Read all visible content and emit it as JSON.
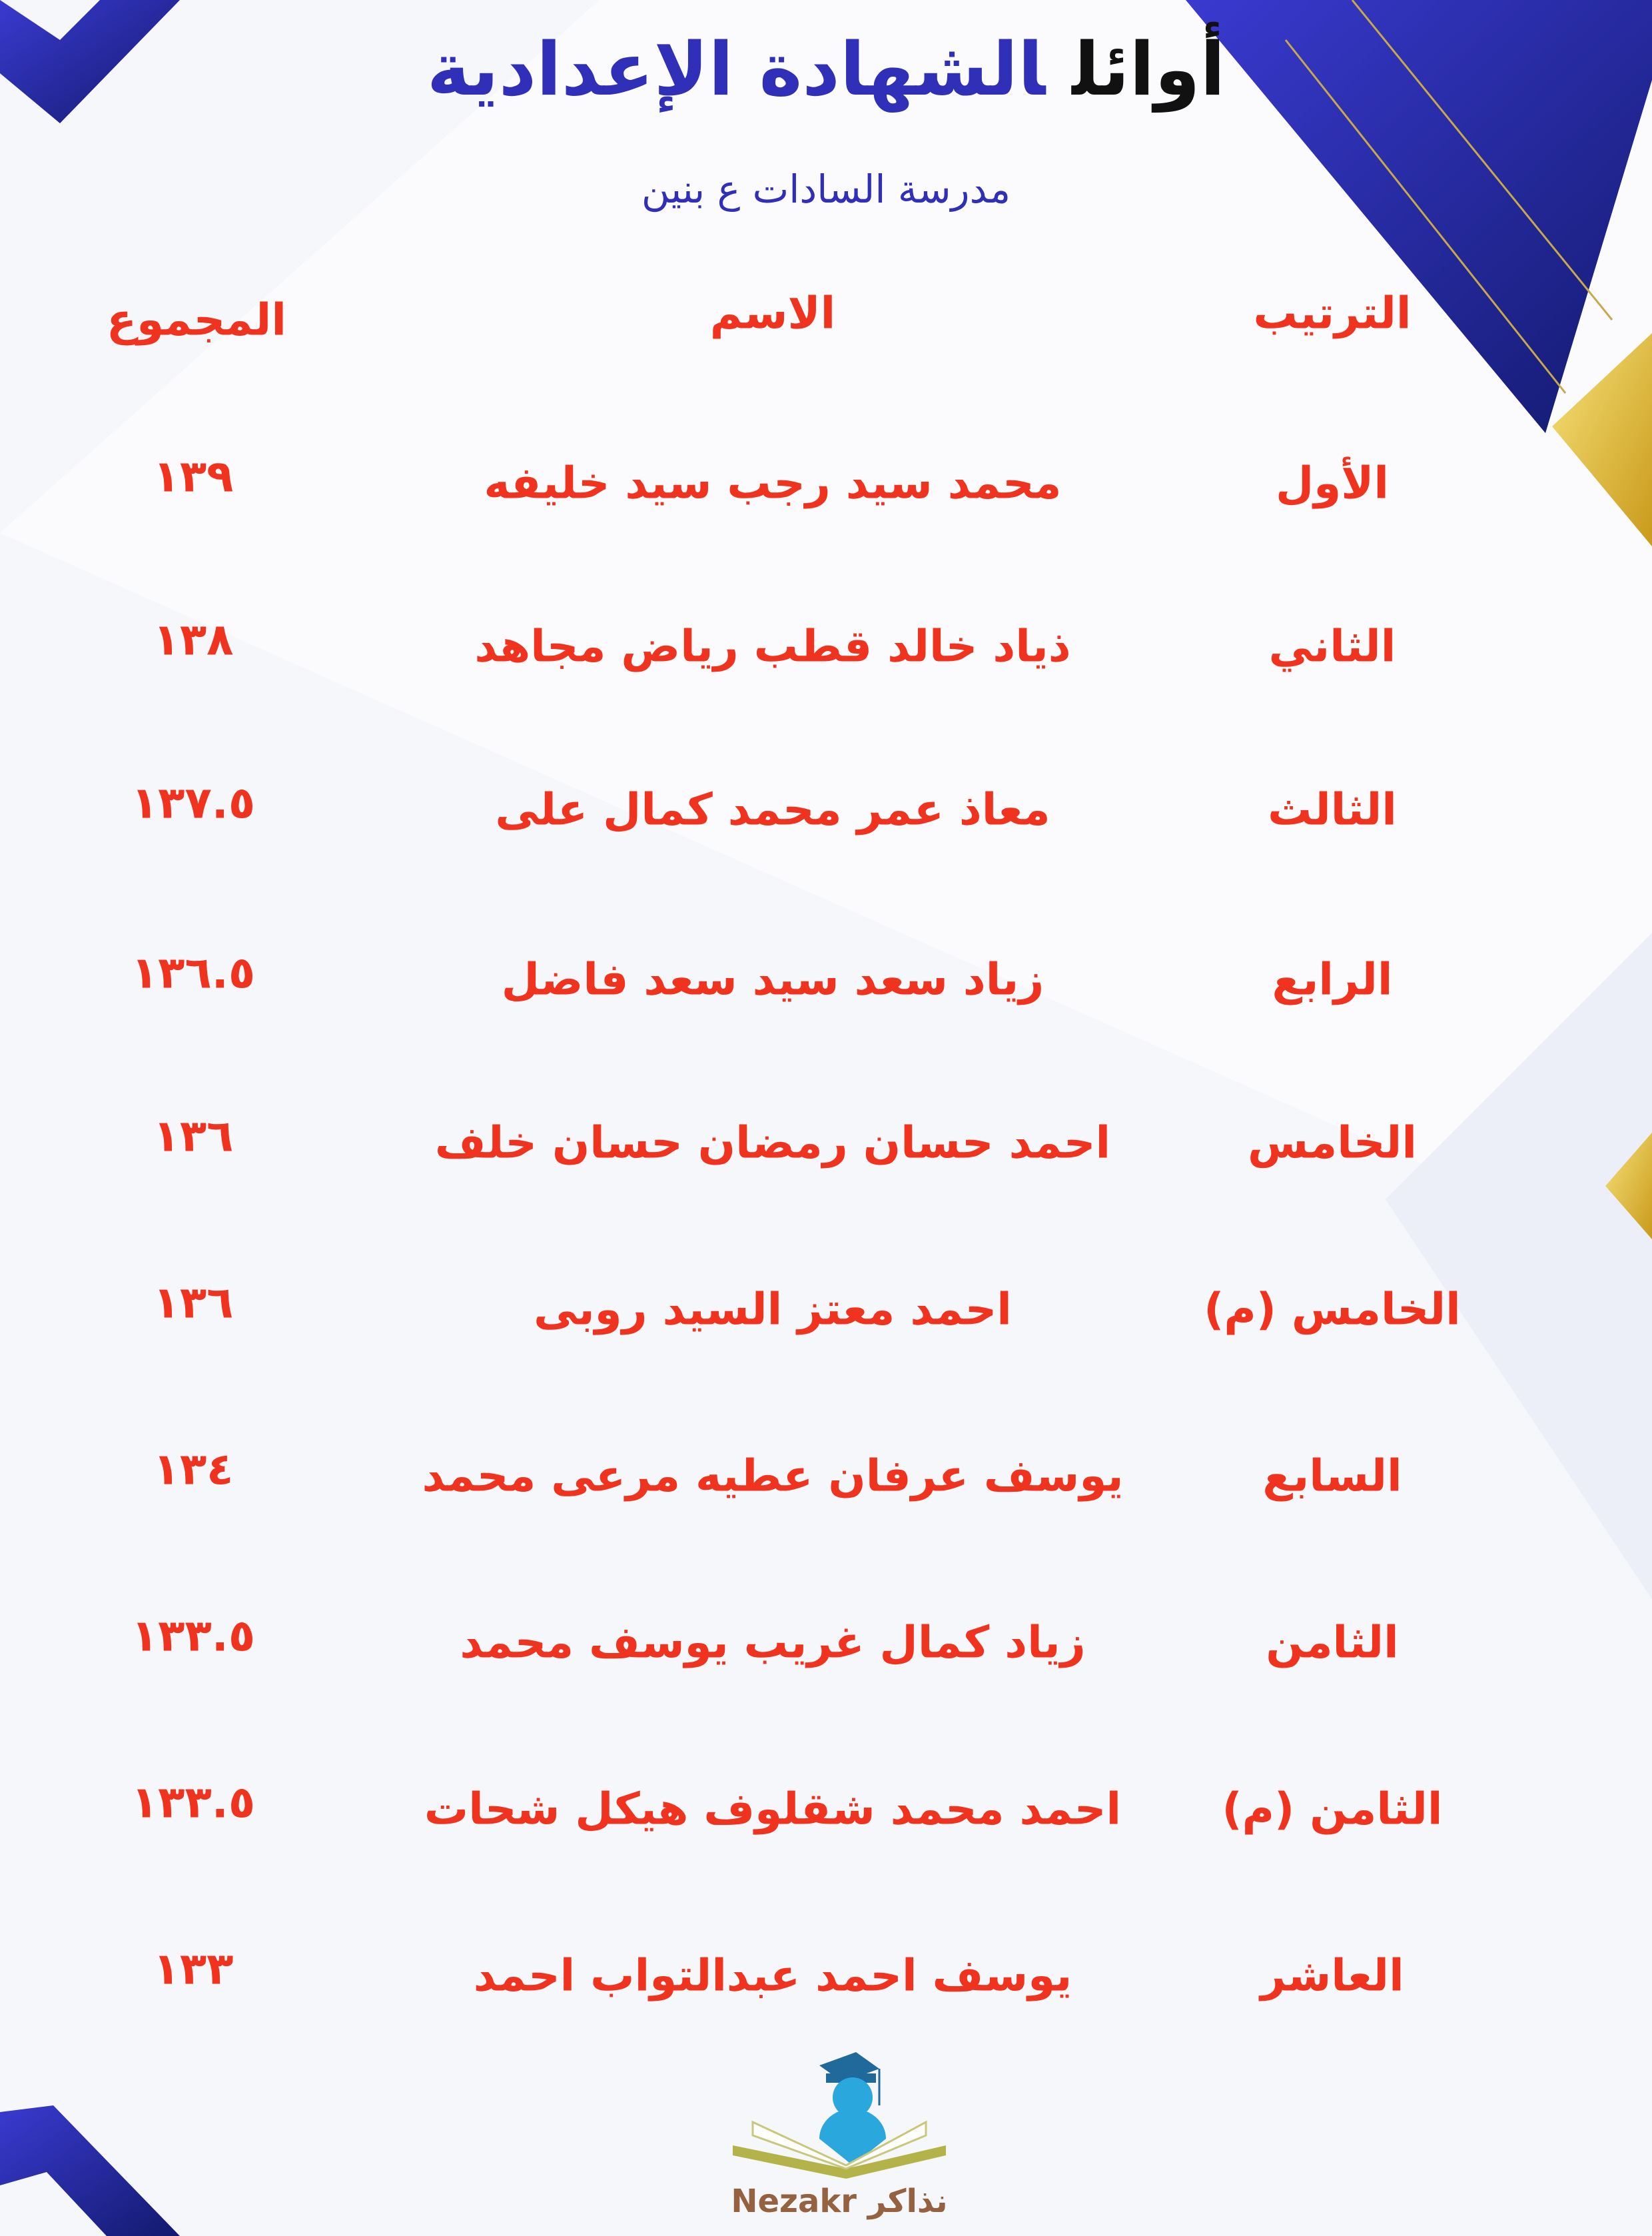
{
  "header": {
    "title_part1": "أوائل",
    "title_part2": "الشهادة الإعدادية",
    "school": "مدرسة السادات ع بنين"
  },
  "columns": {
    "rank": "الترتيب",
    "name": "الاسم",
    "total": "المجموع"
  },
  "rows": [
    {
      "rank": "الأول",
      "name": "محمد سيد رجب سيد خليفه",
      "total": "١٣٩"
    },
    {
      "rank": "الثاني",
      "name": "ذياد خالد قطب رياض مجاهد",
      "total": "١٣٨"
    },
    {
      "rank": "الثالث",
      "name": "معاذ عمر محمد كمال على",
      "total": "١٣٧.٥"
    },
    {
      "rank": "الرابع",
      "name": "زياد سعد سيد سعد فاضل",
      "total": "١٣٦.٥"
    },
    {
      "rank": "الخامس",
      "name": "احمد حسان رمضان حسان خلف",
      "total": "١٣٦"
    },
    {
      "rank": "الخامس (م)",
      "name": "احمد معتز السيد روبى",
      "total": "١٣٦"
    },
    {
      "rank": "السابع",
      "name": "يوسف عرفان عطيه مرعى محمد",
      "total": "١٣٤"
    },
    {
      "rank": "الثامن",
      "name": "زياد كمال غريب يوسف محمد",
      "total": "١٣٣.٥"
    },
    {
      "rank": "الثامن (م)",
      "name": "احمد محمد شقلوف هيكل شحات",
      "total": "١٣٣.٥"
    },
    {
      "rank": "العاشر",
      "name": "يوسف احمد عبدالتواب احمد",
      "total": "١٣٣"
    }
  ],
  "logo": {
    "text": "Nezakr نذاكر"
  },
  "colors": {
    "accent_blue": "#2f2fb8",
    "text_red": "#f0331f",
    "gold": "#e8c033"
  }
}
